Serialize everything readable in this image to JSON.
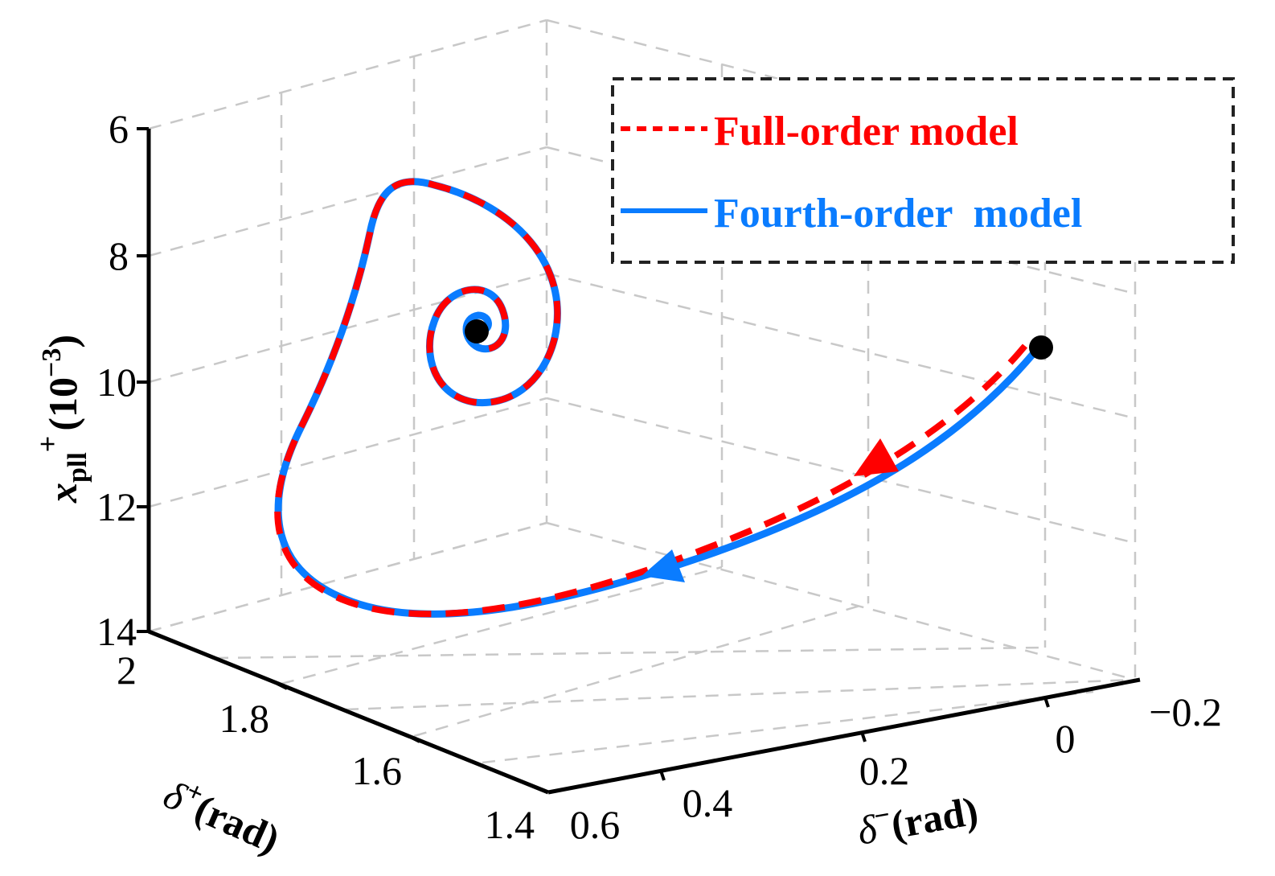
{
  "chart_data": {
    "type": "line",
    "projection": "3d",
    "axes": {
      "x": {
        "label_symbol": "δ",
        "label_sup": "−",
        "label_unit": "(rad)",
        "ticks": [
          "−0.2",
          "0",
          "0.2",
          "0.4",
          "0.6"
        ],
        "range": [
          -0.2,
          0.6
        ]
      },
      "y": {
        "label_symbol": "δ",
        "label_sup": "+",
        "label_unit": "(rad)",
        "ticks": [
          "1.4",
          "1.6",
          "1.8",
          "2"
        ],
        "range": [
          1.4,
          2.0
        ]
      },
      "z": {
        "label_symbol": "x",
        "label_sub": "pll",
        "label_sup": "+",
        "label_unit": "(10",
        "label_unit_exp": "−3",
        "label_unit_close": ")",
        "ticks": [
          "6",
          "8",
          "10",
          "12",
          "14"
        ],
        "range": [
          6,
          14
        ],
        "reversed": true
      }
    },
    "grid": true,
    "legend": {
      "position": "top-right",
      "entries": [
        {
          "label": "Full-order model",
          "color": "#ff0000",
          "style": "dashed"
        },
        {
          "label": "Fourth-order  model",
          "color": "#0a7cff",
          "style": "solid"
        }
      ]
    },
    "series": [
      {
        "name": "Full-order model",
        "color": "#ff0000"
      },
      {
        "name": "Fourth-order  model",
        "color": "#0a7cff"
      }
    ],
    "start_point": {
      "x": -0.05,
      "y": 1.45,
      "z": 9.7
    },
    "end_point": {
      "x": 0.52,
      "y": 1.92,
      "z": 9.3
    }
  },
  "colors": {
    "full_order": "#ff0000",
    "fourth_order": "#0a7cff",
    "grid": "#c8c8c8",
    "axis": "#000000",
    "legend_border": "#222222"
  }
}
